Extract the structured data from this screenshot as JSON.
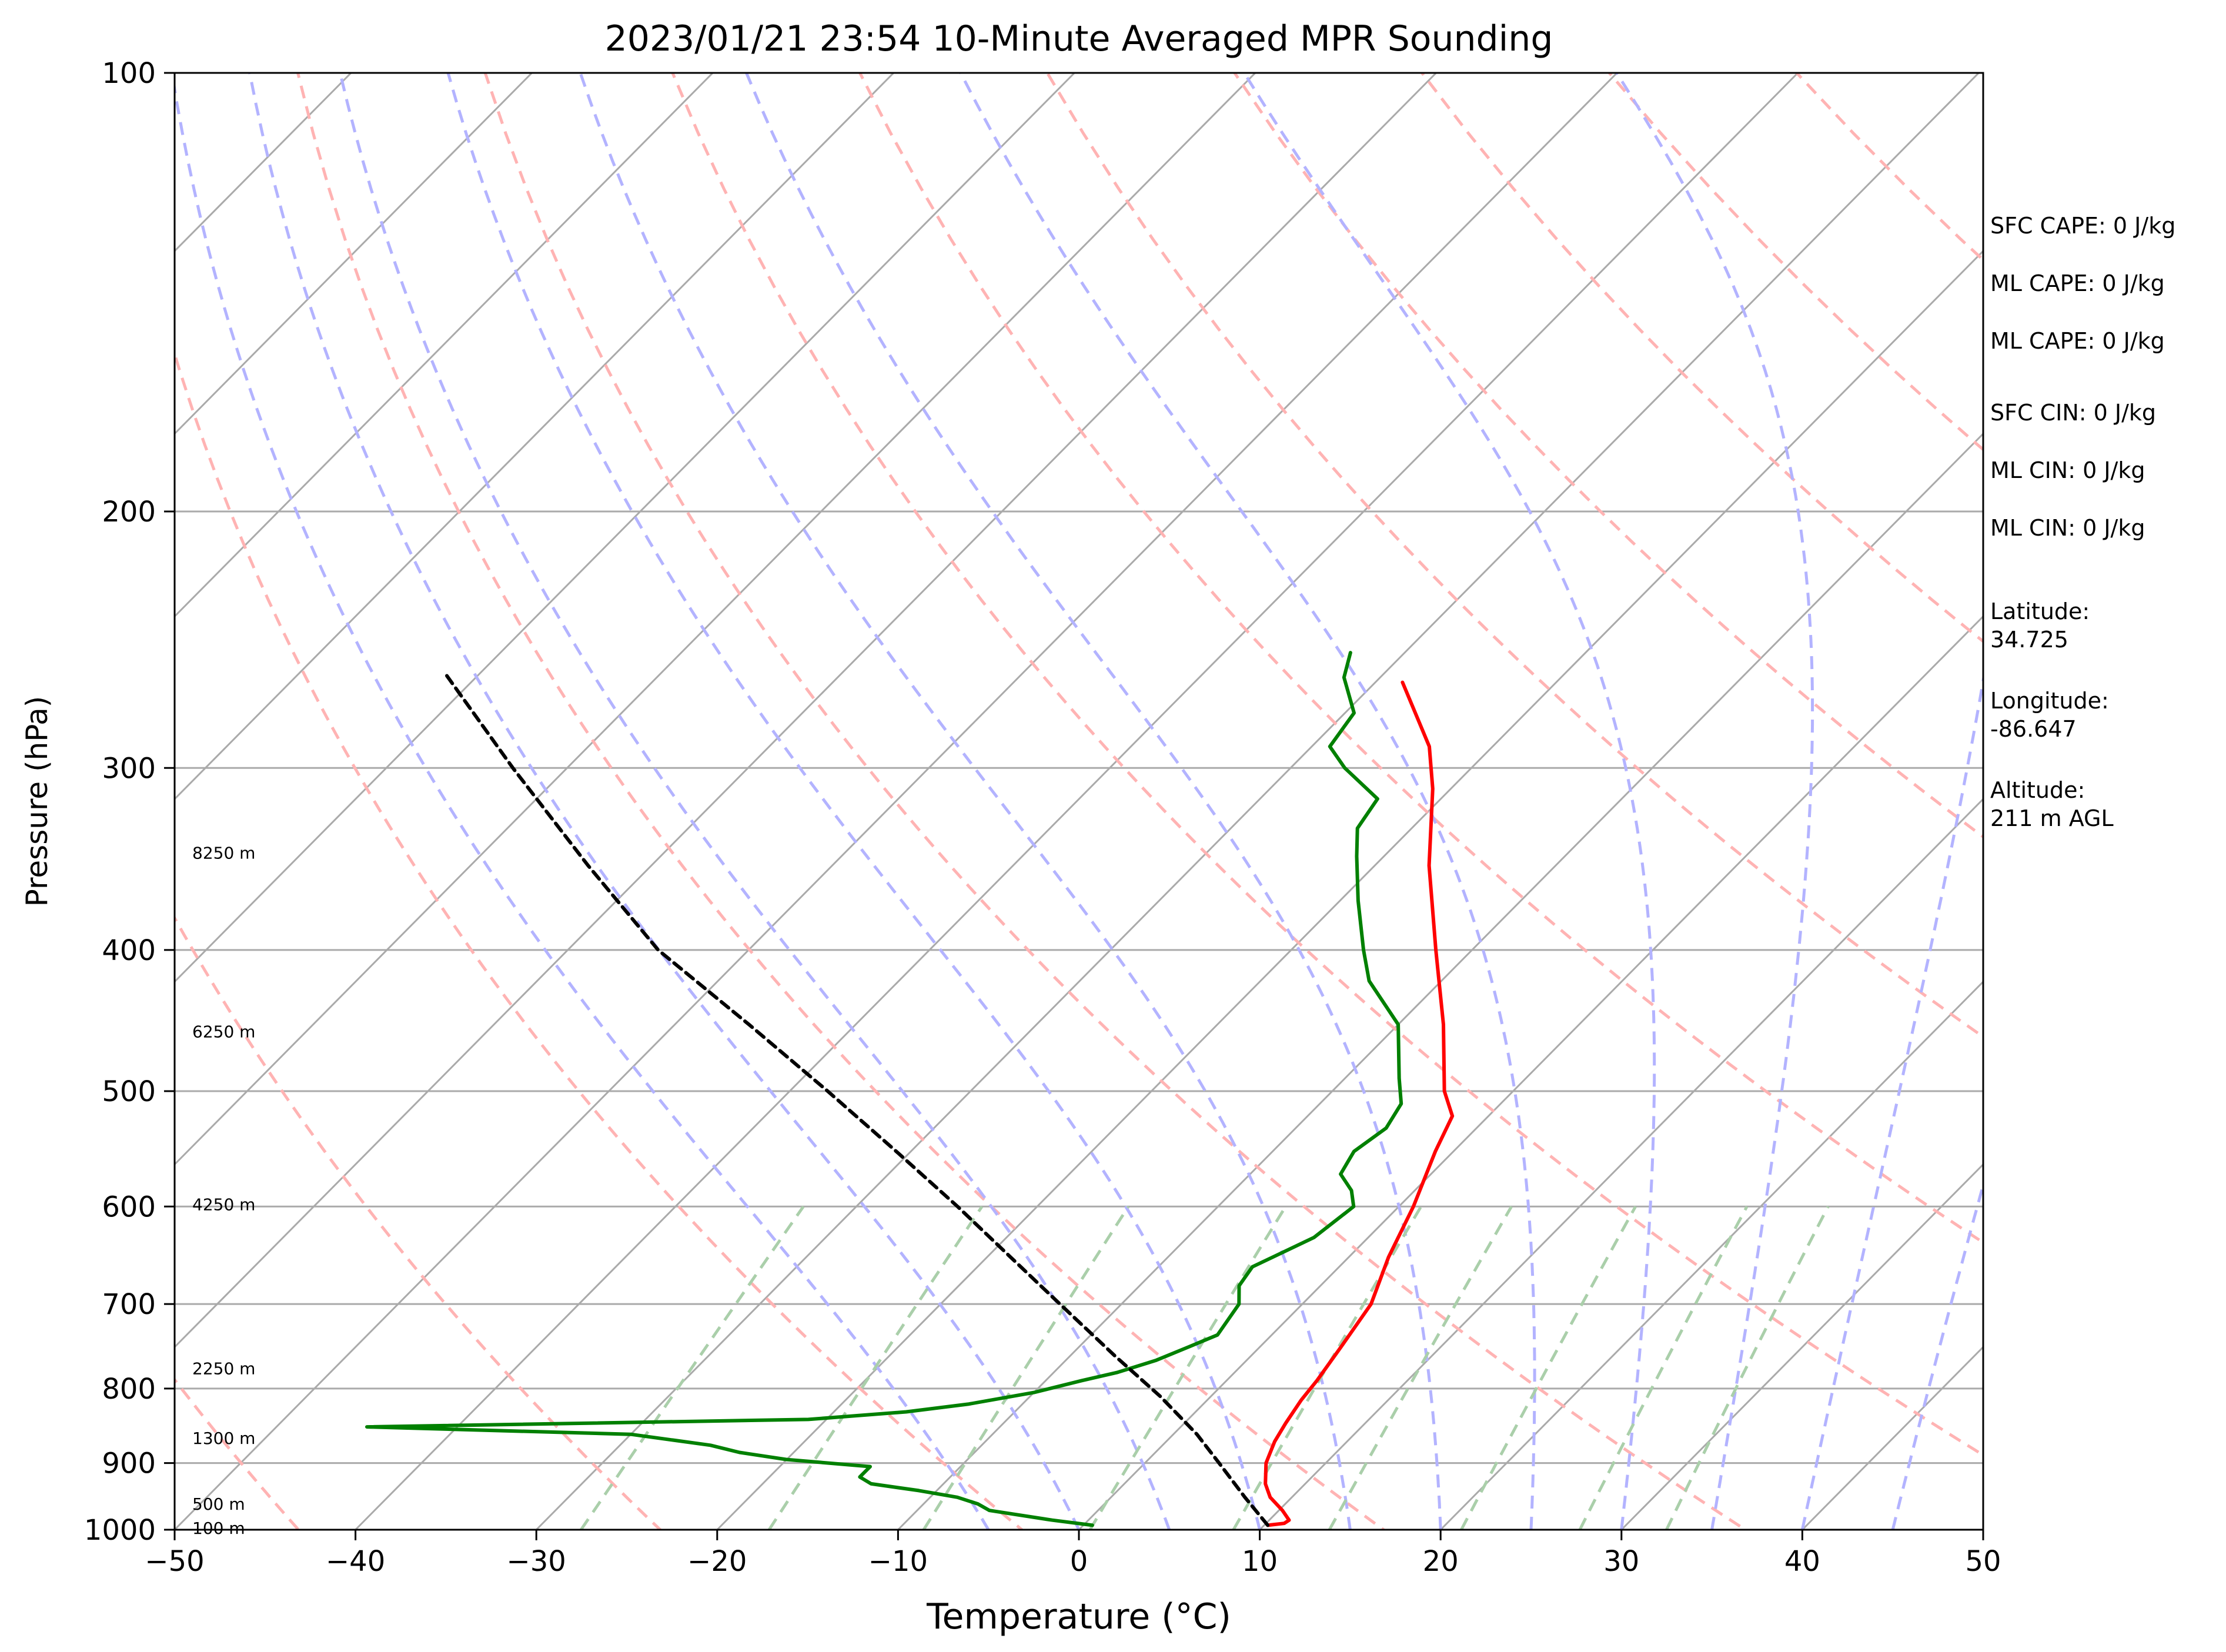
{
  "chart_data": {
    "type": "line",
    "subtype": "skew-t log-p sounding",
    "title": "2023/01/21 23:54 10-Minute Averaged MPR Sounding",
    "xlabel": "Temperature (°C)",
    "ylabel": "Pressure (hPa)",
    "xlim": [
      -50,
      50
    ],
    "ylim": [
      1000,
      100
    ],
    "yscale": "log",
    "x_ticks": [
      -50,
      -40,
      -30,
      -20,
      -10,
      0,
      10,
      20,
      30,
      40,
      50
    ],
    "x_tick_labels": [
      "−50",
      "−40",
      "−30",
      "−20",
      "−10",
      "0",
      "10",
      "20",
      "30",
      "40",
      "50"
    ],
    "y_ticks": [
      1000,
      900,
      800,
      700,
      600,
      500,
      400,
      300,
      200,
      100
    ],
    "y_tick_labels": [
      "1000",
      "900",
      "800",
      "700",
      "600",
      "500",
      "400",
      "300",
      "200",
      "100"
    ],
    "grid": true,
    "height_labels": [
      {
        "pressure": 997,
        "text": "100 m"
      },
      {
        "pressure": 960,
        "text": "500 m"
      },
      {
        "pressure": 865,
        "text": "1300 m"
      },
      {
        "pressure": 775,
        "text": "2250 m"
      },
      {
        "pressure": 598,
        "text": "4250 m"
      },
      {
        "pressure": 455,
        "text": "6250 m"
      },
      {
        "pressure": 343,
        "text": "8250 m"
      }
    ],
    "series": [
      {
        "role": "temperature",
        "color": "#ff0000",
        "points": [
          [
            993,
            10.2
          ],
          [
            990,
            11.0
          ],
          [
            985,
            11.1
          ],
          [
            970,
            10.2
          ],
          [
            950,
            8.8
          ],
          [
            930,
            7.8
          ],
          [
            900,
            6.7
          ],
          [
            870,
            6.0
          ],
          [
            845,
            5.6
          ],
          [
            815,
            5.2
          ],
          [
            790,
            5.0
          ],
          [
            750,
            4.5
          ],
          [
            700,
            3.8
          ],
          [
            650,
            2.2
          ],
          [
            600,
            0.8
          ],
          [
            550,
            -1.0
          ],
          [
            520,
            -2.0
          ],
          [
            500,
            -3.8
          ],
          [
            450,
            -7.5
          ],
          [
            400,
            -12.0
          ],
          [
            350,
            -17.0
          ],
          [
            310,
            -21.0
          ],
          [
            290,
            -23.5
          ],
          [
            262,
            -28.5
          ]
        ]
      },
      {
        "role": "dewpoint",
        "color": "#008000",
        "points": [
          [
            993,
            0.5
          ],
          [
            985,
            -2.0
          ],
          [
            970,
            -6.0
          ],
          [
            960,
            -7.0
          ],
          [
            950,
            -8.5
          ],
          [
            940,
            -11.0
          ],
          [
            930,
            -14.0
          ],
          [
            920,
            -15.0
          ],
          [
            905,
            -15.0
          ],
          [
            895,
            -20.0
          ],
          [
            885,
            -23.0
          ],
          [
            875,
            -25.0
          ],
          [
            860,
            -30.0
          ],
          [
            850,
            -45.0
          ],
          [
            840,
            -21.0
          ],
          [
            830,
            -16.0
          ],
          [
            820,
            -13.0
          ],
          [
            805,
            -10.0
          ],
          [
            790,
            -8.0
          ],
          [
            780,
            -6.5
          ],
          [
            765,
            -5.0
          ],
          [
            750,
            -4.0
          ],
          [
            735,
            -3.0
          ],
          [
            700,
            -3.5
          ],
          [
            680,
            -4.5
          ],
          [
            660,
            -4.8
          ],
          [
            630,
            -3.0
          ],
          [
            600,
            -2.5
          ],
          [
            585,
            -3.5
          ],
          [
            570,
            -5.0
          ],
          [
            550,
            -5.5
          ],
          [
            530,
            -5.0
          ],
          [
            510,
            -5.5
          ],
          [
            490,
            -7.0
          ],
          [
            450,
            -10.0
          ],
          [
            420,
            -14.0
          ],
          [
            400,
            -16.0
          ],
          [
            370,
            -19.0
          ],
          [
            345,
            -21.5
          ],
          [
            330,
            -23.0
          ],
          [
            315,
            -23.5
          ],
          [
            300,
            -27.0
          ],
          [
            290,
            -29.0
          ],
          [
            275,
            -29.5
          ],
          [
            260,
            -32.0
          ],
          [
            250,
            -33.0
          ]
        ]
      },
      {
        "role": "parcel",
        "color": "#000000",
        "style": "dashed",
        "points": [
          [
            993,
            10.2
          ],
          [
            950,
            7.4
          ],
          [
            900,
            4.1
          ],
          [
            860,
            1.3
          ],
          [
            810,
            -2.8
          ],
          [
            760,
            -7.5
          ],
          [
            700,
            -13.4
          ],
          [
            650,
            -18.7
          ],
          [
            600,
            -24.4
          ],
          [
            550,
            -30.8
          ],
          [
            500,
            -37.9
          ],
          [
            450,
            -45.9
          ],
          [
            400,
            -55.0
          ],
          [
            350,
            -63.5
          ],
          [
            300,
            -73.0
          ],
          [
            258,
            -82.0
          ]
        ]
      }
    ],
    "background_lines": {
      "isotherms_c": [
        -150,
        -140,
        -130,
        -120,
        -110,
        -100,
        -90,
        -80,
        -70,
        -60,
        -50,
        -40,
        -30,
        -20,
        -10,
        0,
        10,
        20,
        30,
        40,
        50
      ],
      "dry_adiabats_k": [
        230,
        250,
        270,
        290,
        310,
        330,
        350,
        370,
        390,
        410,
        430,
        450,
        470,
        490
      ],
      "moist_adiabats_c": [
        -5,
        0,
        5,
        10,
        15,
        20,
        25,
        30,
        35,
        40,
        45
      ],
      "mixing_ratios_gkg": [
        0.4,
        1,
        2,
        4,
        7,
        10,
        16,
        24,
        32
      ],
      "isotherm_color": "#aaaaaa",
      "dry_adiabat_color": "#ffb3b3",
      "moist_adiabat_color": "#b3b3ff",
      "mixing_ratio_color": "#aacfaa"
    }
  },
  "side_panel": {
    "items": [
      "SFC CAPE: 0 J/kg",
      "ML CAPE: 0 J/kg",
      "ML CAPE: 0 J/kg",
      "SFC CIN: 0 J/kg",
      "ML CIN: 0 J/kg",
      "ML CIN: 0 J/kg",
      "Latitude:\n34.725",
      "Longitude:\n-86.647",
      "Altitude:\n211 m AGL"
    ]
  }
}
